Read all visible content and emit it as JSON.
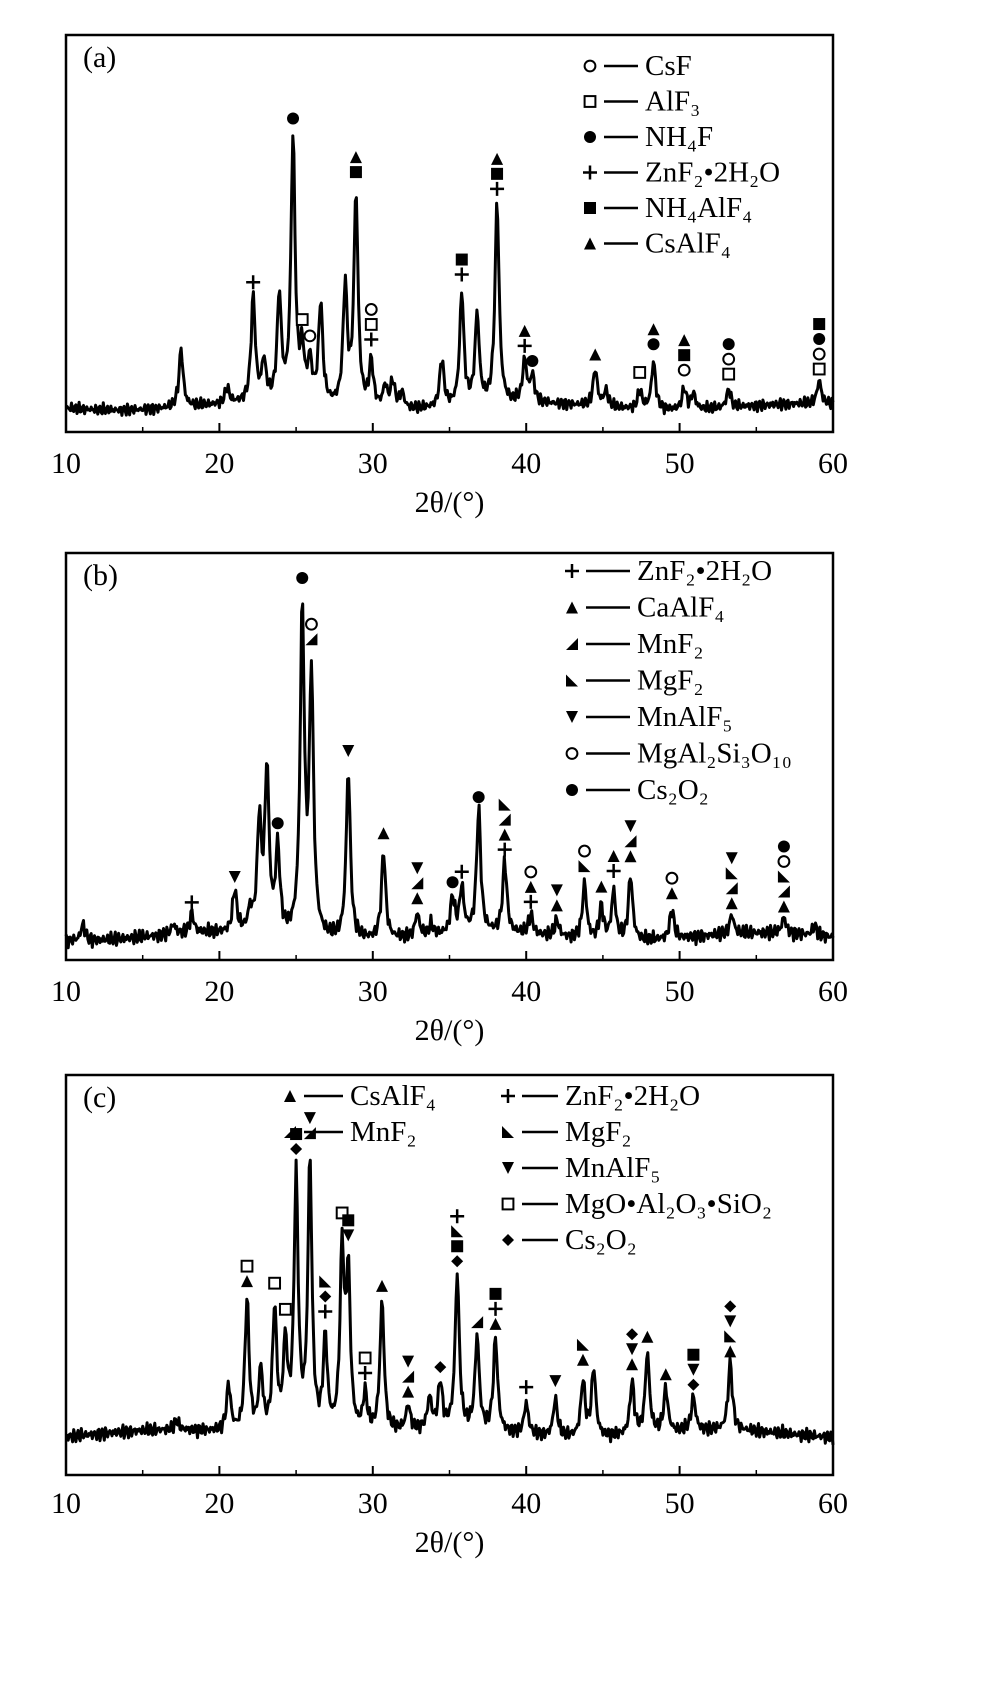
{
  "chart_data": [
    {
      "type": "line",
      "panel_label": "(a)",
      "xlabel": "2θ/(°)",
      "xlim": [
        10,
        60
      ],
      "x_ticks": [
        "10",
        "20",
        "30",
        "40",
        "50",
        "60"
      ],
      "legend_position": "top-right",
      "legend": [
        {
          "marker": "open-circle",
          "label": "CsF"
        },
        {
          "marker": "open-square",
          "label": "AlF₃"
        },
        {
          "marker": "filled-circle",
          "label": "NH₄F"
        },
        {
          "marker": "plus",
          "label": "ZnF₂•2H₂O"
        },
        {
          "marker": "filled-square",
          "label": "NH₄AlF₄"
        },
        {
          "marker": "filled-triangle",
          "label": "CsAlF₄"
        }
      ],
      "peaks": [
        {
          "x": 17.5,
          "h": 0.22
        },
        {
          "x": 20.5,
          "h": 0.06
        },
        {
          "x": 22.2,
          "h": 0.4,
          "markers": [
            "plus"
          ]
        },
        {
          "x": 22.9,
          "h": 0.15
        },
        {
          "x": 23.9,
          "h": 0.4
        },
        {
          "x": 24.8,
          "h": 1.0,
          "markers": [
            "filled-circle"
          ]
        },
        {
          "x": 25.4,
          "h": 0.18,
          "markers": [
            "open-square"
          ]
        },
        {
          "x": 25.9,
          "h": 0.15,
          "markers": [
            "open-circle"
          ]
        },
        {
          "x": 26.6,
          "h": 0.38
        },
        {
          "x": 28.2,
          "h": 0.45
        },
        {
          "x": 28.9,
          "h": 0.8,
          "markers": [
            "filled-square",
            "filled-triangle"
          ]
        },
        {
          "x": 29.9,
          "h": 0.17,
          "markers": [
            "plus",
            "open-square",
            "open-circle"
          ]
        },
        {
          "x": 30.8,
          "h": 0.08
        },
        {
          "x": 31.3,
          "h": 0.1
        },
        {
          "x": 31.9,
          "h": 0.06
        },
        {
          "x": 34.5,
          "h": 0.18
        },
        {
          "x": 35.8,
          "h": 0.43,
          "markers": [
            "plus",
            "filled-square"
          ]
        },
        {
          "x": 36.8,
          "h": 0.34
        },
        {
          "x": 38.1,
          "h": 0.76,
          "markers": [
            "plus",
            "filled-square",
            "filled-triangle"
          ]
        },
        {
          "x": 39.9,
          "h": 0.16,
          "markers": [
            "plus",
            "filled-triangle"
          ]
        },
        {
          "x": 40.4,
          "h": 0.1,
          "markers": [
            "filled-circle"
          ]
        },
        {
          "x": 44.5,
          "h": 0.14,
          "markers": [
            "filled-triangle"
          ]
        },
        {
          "x": 45.2,
          "h": 0.06
        },
        {
          "x": 47.4,
          "h": 0.07,
          "markers": [
            "open-square"
          ]
        },
        {
          "x": 48.3,
          "h": 0.18,
          "markers": [
            "filled-circle",
            "filled-triangle"
          ]
        },
        {
          "x": 50.3,
          "h": 0.08,
          "markers": [
            "open-circle",
            "filled-square",
            "filled-triangle"
          ]
        },
        {
          "x": 50.9,
          "h": 0.06
        },
        {
          "x": 53.2,
          "h": 0.07,
          "markers": [
            "open-square",
            "open-circle",
            "filled-circle"
          ]
        },
        {
          "x": 59.1,
          "h": 0.09,
          "markers": [
            "open-square",
            "open-circle",
            "filled-circle",
            "filled-square"
          ]
        }
      ]
    },
    {
      "type": "line",
      "panel_label": "(b)",
      "xlabel": "2θ/(°)",
      "xlim": [
        10,
        60
      ],
      "x_ticks": [
        "10",
        "20",
        "30",
        "40",
        "50",
        "60"
      ],
      "legend_position": "top-right",
      "legend": [
        {
          "marker": "plus",
          "label": "ZnF₂•2H₂O"
        },
        {
          "marker": "filled-triangle",
          "label": "CaAlF₄"
        },
        {
          "marker": "half-triangle-left",
          "label": "MnF₂"
        },
        {
          "marker": "half-triangle-right",
          "label": "MgF₂"
        },
        {
          "marker": "inverted-triangle",
          "label": "MnAlF₅"
        },
        {
          "marker": "open-circle",
          "label": "MgAl₂Si₃O₁₀"
        },
        {
          "marker": "filled-circle",
          "label": "Cs₂O₂"
        }
      ],
      "peaks": [
        {
          "x": 11.1,
          "h": 0.05
        },
        {
          "x": 17.0,
          "h": 0.03
        },
        {
          "x": 18.2,
          "h": 0.06,
          "markers": [
            "plus"
          ]
        },
        {
          "x": 21.0,
          "h": 0.13,
          "markers": [
            "inverted-triangle"
          ]
        },
        {
          "x": 22.0,
          "h": 0.06
        },
        {
          "x": 22.6,
          "h": 0.34
        },
        {
          "x": 23.1,
          "h": 0.5
        },
        {
          "x": 23.8,
          "h": 0.26,
          "markers": [
            "filled-circle"
          ]
        },
        {
          "x": 25.4,
          "h": 1.0,
          "markers": [
            "filled-circle"
          ]
        },
        {
          "x": 26.0,
          "h": 0.8,
          "markers": [
            "half-triangle-left",
            "open-circle"
          ]
        },
        {
          "x": 28.4,
          "h": 0.52,
          "markers": [
            "inverted-triangle"
          ]
        },
        {
          "x": 30.7,
          "h": 0.27,
          "markers": [
            "filled-triangle"
          ]
        },
        {
          "x": 32.9,
          "h": 0.07,
          "markers": [
            "filled-triangle",
            "half-triangle-left",
            "inverted-triangle"
          ]
        },
        {
          "x": 33.8,
          "h": 0.03
        },
        {
          "x": 35.2,
          "h": 0.11,
          "markers": [
            "filled-circle"
          ]
        },
        {
          "x": 35.8,
          "h": 0.14,
          "markers": [
            "plus"
          ]
        },
        {
          "x": 36.9,
          "h": 0.38,
          "markers": [
            "filled-circle"
          ]
        },
        {
          "x": 38.6,
          "h": 0.22,
          "markers": [
            "plus",
            "filled-triangle",
            "half-triangle-left",
            "half-triangle-right"
          ]
        },
        {
          "x": 40.3,
          "h": 0.06,
          "markers": [
            "plus",
            "filled-triangle",
            "open-circle"
          ]
        },
        {
          "x": 42.0,
          "h": 0.05,
          "markers": [
            "filled-triangle",
            "inverted-triangle"
          ]
        },
        {
          "x": 43.8,
          "h": 0.17,
          "markers": [
            "half-triangle-right",
            "open-circle"
          ]
        },
        {
          "x": 44.9,
          "h": 0.1,
          "markers": [
            "filled-triangle"
          ]
        },
        {
          "x": 45.7,
          "h": 0.15,
          "markers": [
            "plus",
            "filled-triangle"
          ]
        },
        {
          "x": 46.8,
          "h": 0.2,
          "markers": [
            "filled-triangle",
            "half-triangle-left",
            "inverted-triangle"
          ]
        },
        {
          "x": 49.5,
          "h": 0.09,
          "markers": [
            "filled-triangle",
            "open-circle"
          ]
        },
        {
          "x": 53.4,
          "h": 0.06,
          "markers": [
            "filled-triangle",
            "half-triangle-left",
            "half-triangle-right",
            "inverted-triangle"
          ]
        },
        {
          "x": 56.8,
          "h": 0.05,
          "markers": [
            "filled-triangle",
            "half-triangle-left",
            "half-triangle-right",
            "open-circle",
            "filled-circle"
          ]
        },
        {
          "x": 58.8,
          "h": 0.03
        }
      ]
    },
    {
      "type": "line",
      "panel_label": "(c)",
      "xlabel": "2θ/(°)",
      "xlim": [
        10,
        60
      ],
      "x_ticks": [
        "10",
        "20",
        "30",
        "40",
        "50",
        "60"
      ],
      "legend_position": "top",
      "legend": [
        {
          "marker": "filled-triangle",
          "label": "CsAlF₄"
        },
        {
          "marker": "half-triangle-left",
          "label": "MnF₂"
        },
        {
          "marker": "plus",
          "label": "ZnF₂•2H₂O"
        },
        {
          "marker": "half-triangle-right",
          "label": "MgF₂"
        },
        {
          "marker": "inverted-triangle",
          "label": "MnAlF₅"
        },
        {
          "marker": "open-square",
          "label": "MgO•Al₂O₃•SiO₂"
        },
        {
          "marker": "filled-diamond",
          "label": "Cs₂O₂"
        }
      ],
      "peaks": [
        {
          "x": 17.2,
          "h": 0.03
        },
        {
          "x": 20.6,
          "h": 0.15
        },
        {
          "x": 21.8,
          "h": 0.43,
          "markers": [
            "filled-triangle",
            "open-square"
          ]
        },
        {
          "x": 22.7,
          "h": 0.2
        },
        {
          "x": 23.6,
          "h": 0.4,
          "markers": [
            "open-square"
          ]
        },
        {
          "x": 24.3,
          "h": 0.28,
          "markers": [
            "open-square"
          ]
        },
        {
          "x": 25.0,
          "h": 0.82,
          "markers": [
            "filled-diamond",
            "filled-square"
          ]
        },
        {
          "x": 25.9,
          "h": 0.88,
          "markers": [
            "half-triangle-left",
            "inverted-triangle"
          ]
        },
        {
          "x": 26.9,
          "h": 0.3,
          "markers": [
            "plus",
            "filled-diamond",
            "half-triangle-right"
          ]
        },
        {
          "x": 28.0,
          "h": 0.58,
          "markers": [
            "open-square"
          ]
        },
        {
          "x": 28.4,
          "h": 0.5,
          "markers": [
            "inverted-triangle",
            "filled-square"
          ]
        },
        {
          "x": 29.5,
          "h": 0.12,
          "markers": [
            "plus",
            "open-square"
          ]
        },
        {
          "x": 30.6,
          "h": 0.42,
          "markers": [
            "filled-triangle"
          ]
        },
        {
          "x": 32.3,
          "h": 0.08,
          "markers": [
            "filled-triangle",
            "half-triangle-left",
            "inverted-triangle"
          ]
        },
        {
          "x": 33.7,
          "h": 0.1
        },
        {
          "x": 34.4,
          "h": 0.15,
          "markers": [
            "filled-diamond"
          ]
        },
        {
          "x": 35.5,
          "h": 0.5,
          "markers": [
            "filled-diamond",
            "filled-square",
            "half-triangle-right",
            "plus"
          ]
        },
        {
          "x": 36.8,
          "h": 0.3,
          "markers": [
            "half-triangle-left"
          ]
        },
        {
          "x": 38.0,
          "h": 0.3,
          "markers": [
            "filled-triangle",
            "plus",
            "filled-square"
          ]
        },
        {
          "x": 40.0,
          "h": 0.1,
          "markers": [
            "plus"
          ]
        },
        {
          "x": 41.9,
          "h": 0.12,
          "markers": [
            "inverted-triangle"
          ]
        },
        {
          "x": 43.7,
          "h": 0.18,
          "markers": [
            "filled-triangle",
            "half-triangle-right"
          ]
        },
        {
          "x": 44.4,
          "h": 0.22
        },
        {
          "x": 46.9,
          "h": 0.17,
          "markers": [
            "filled-triangle",
            "inverted-triangle",
            "filled-diamond"
          ]
        },
        {
          "x": 47.9,
          "h": 0.26,
          "markers": [
            "filled-triangle"
          ]
        },
        {
          "x": 49.1,
          "h": 0.14,
          "markers": [
            "filled-triangle"
          ]
        },
        {
          "x": 50.9,
          "h": 0.11,
          "markers": [
            "filled-diamond",
            "inverted-triangle",
            "filled-square"
          ]
        },
        {
          "x": 53.3,
          "h": 0.22,
          "markers": [
            "filled-triangle",
            "half-triangle-right",
            "inverted-triangle",
            "filled-diamond"
          ]
        }
      ]
    }
  ]
}
